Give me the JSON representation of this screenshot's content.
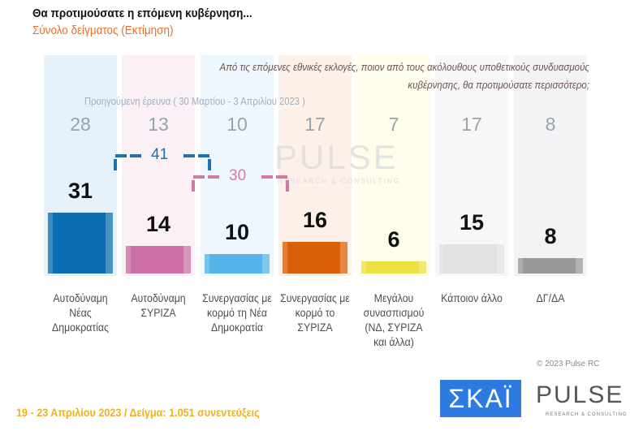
{
  "header": {
    "title": "Θα προτιμούσατε η επόμενη κυβέρνηση...",
    "subtitle": "Σύνολο δείγματος  (Εκτίμηση)"
  },
  "question": "Από τις επόμενες εθνικές εκλογές, ποιον από τους ακόλουθους υποθετικούς συνδυασμούς κυβέρνησης, θα προτιμούσατε περισσότερο;",
  "previous_label": "Προηγούμενη έρευνα  ( 30 Μαρτίου - 3 Απριλίου  2023 )",
  "chart_data": {
    "type": "bar",
    "categories": [
      "Αυτοδύναμη Νέας Δημοκρατίας",
      "Αυτοδύναμη ΣΥΡΙΖΑ",
      "Συνεργασίας με κορμό τη Νέα Δημοκρατία",
      "Συνεργασίας με κορμό το ΣΥΡΙΖΑ",
      "Μεγάλου συνασπισμού (ΝΔ, ΣΥΡΙΖΑ και άλλα)",
      "Κάποιον άλλο",
      "ΔΓ/ΔΑ"
    ],
    "values": [
      31,
      14,
      10,
      16,
      6,
      15,
      8
    ],
    "previous_values": [
      28,
      13,
      10,
      17,
      7,
      17,
      8
    ],
    "colors": [
      "#0b6eb0",
      "#cc6fa6",
      "#56b4e8",
      "#d95f08",
      "#eee040",
      "#e2e2e2",
      "#999999"
    ],
    "bg_colors": [
      "#e6f1fa",
      "#fbf0f6",
      "#eef7fd",
      "#fdf0e8",
      "#fefcea",
      "#f7f7f7",
      "#f3f3f5"
    ],
    "brackets": [
      {
        "value": "41",
        "color": "#1f70b0"
      },
      {
        "value": "30",
        "color": "#d07aa6"
      }
    ]
  },
  "watermark": {
    "name": "PULSE",
    "sub": "RESEARCH & CONSULTING"
  },
  "copyright": "© 2023 Pulse RC",
  "footer": "19 - 23  Απριλίου  2023  /  Δείγμα:  1.051 συνεντεύξεις",
  "logos": {
    "skai": "ΣΚΑΪ",
    "pulse": "PULSE",
    "pulse_sub": "RESEARCH & CONSULTING"
  }
}
